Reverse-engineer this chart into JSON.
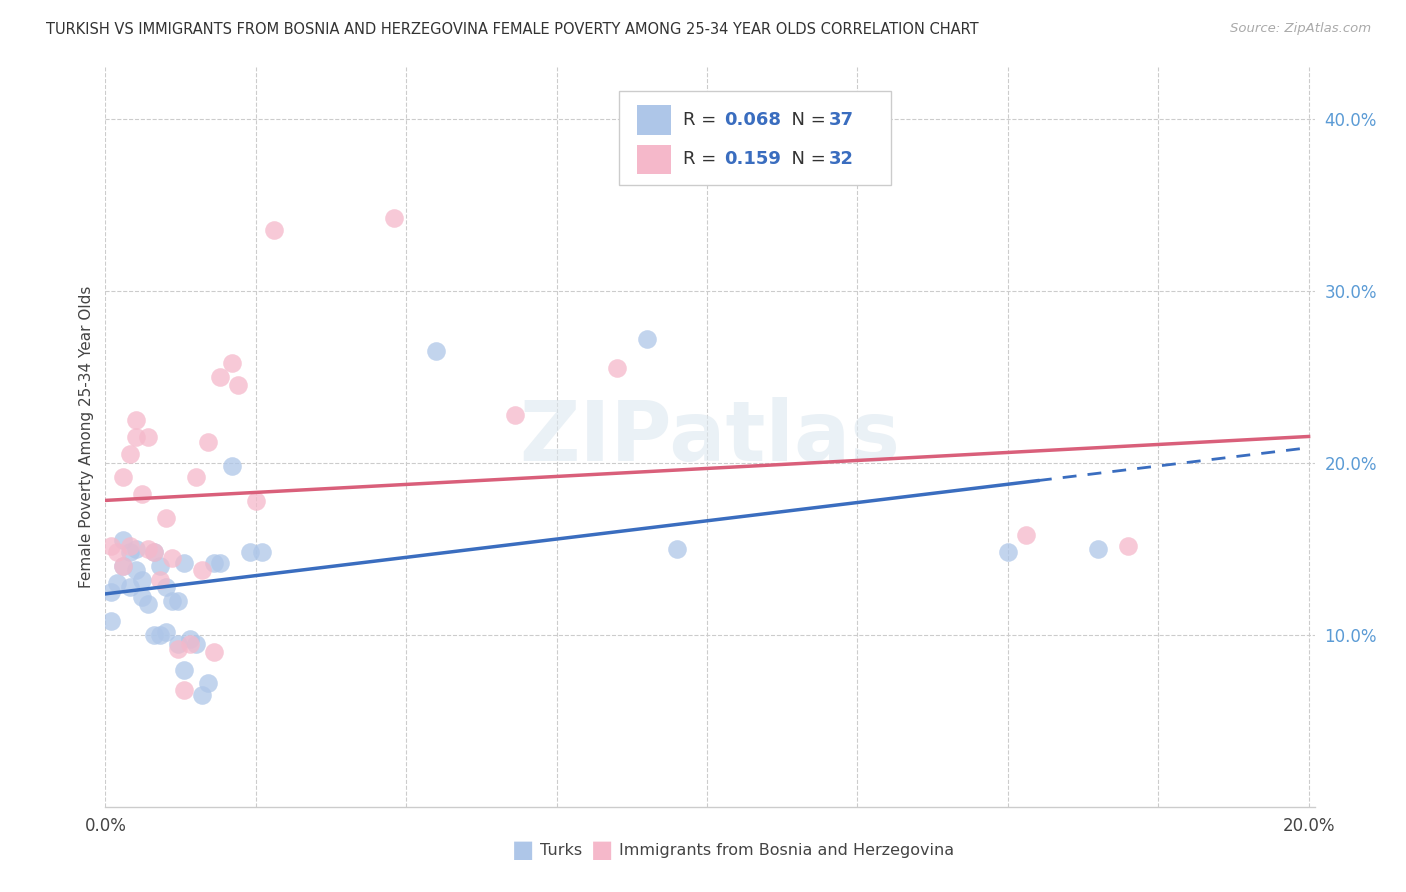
{
  "title": "TURKISH VS IMMIGRANTS FROM BOSNIA AND HERZEGOVINA FEMALE POVERTY AMONG 25-34 YEAR OLDS CORRELATION CHART",
  "source": "Source: ZipAtlas.com",
  "ylabel": "Female Poverty Among 25-34 Year Olds",
  "xlim": [
    0.0,
    0.201
  ],
  "ylim": [
    0.0,
    0.43
  ],
  "xtick_positions": [
    0.0,
    0.025,
    0.05,
    0.075,
    0.1,
    0.125,
    0.15,
    0.175,
    0.2
  ],
  "xtick_labels": [
    "0.0%",
    "",
    "",
    "",
    "",
    "",
    "",
    "",
    "20.0%"
  ],
  "ytick_positions": [
    0.1,
    0.2,
    0.3,
    0.4
  ],
  "ytick_labels": [
    "10.0%",
    "20.0%",
    "30.0%",
    "40.0%"
  ],
  "turks_R": "0.068",
  "turks_N": "37",
  "bosnia_R": "0.159",
  "bosnia_N": "32",
  "turks_color": "#aec6e8",
  "bosnia_color": "#f5b8ca",
  "turks_line_color": "#3a6dbf",
  "bosnia_line_color": "#d95f7a",
  "grid_color": "#cccccc",
  "watermark": "ZIPatlas",
  "turks_x": [
    0.001,
    0.001,
    0.002,
    0.003,
    0.003,
    0.004,
    0.004,
    0.005,
    0.005,
    0.006,
    0.006,
    0.007,
    0.008,
    0.008,
    0.009,
    0.009,
    0.01,
    0.01,
    0.011,
    0.012,
    0.012,
    0.013,
    0.013,
    0.014,
    0.015,
    0.016,
    0.017,
    0.018,
    0.019,
    0.021,
    0.024,
    0.026,
    0.055,
    0.09,
    0.095,
    0.15,
    0.165
  ],
  "turks_y": [
    0.125,
    0.108,
    0.13,
    0.14,
    0.155,
    0.128,
    0.148,
    0.138,
    0.15,
    0.122,
    0.132,
    0.118,
    0.1,
    0.148,
    0.14,
    0.1,
    0.128,
    0.102,
    0.12,
    0.12,
    0.095,
    0.08,
    0.142,
    0.098,
    0.095,
    0.065,
    0.072,
    0.142,
    0.142,
    0.198,
    0.148,
    0.148,
    0.265,
    0.272,
    0.15,
    0.148,
    0.15
  ],
  "bosnia_x": [
    0.001,
    0.002,
    0.003,
    0.003,
    0.004,
    0.004,
    0.005,
    0.005,
    0.006,
    0.007,
    0.007,
    0.008,
    0.009,
    0.01,
    0.011,
    0.012,
    0.013,
    0.014,
    0.015,
    0.016,
    0.017,
    0.018,
    0.019,
    0.021,
    0.022,
    0.025,
    0.028,
    0.048,
    0.068,
    0.085,
    0.153,
    0.17
  ],
  "bosnia_y": [
    0.152,
    0.148,
    0.14,
    0.192,
    0.152,
    0.205,
    0.215,
    0.225,
    0.182,
    0.215,
    0.15,
    0.148,
    0.132,
    0.168,
    0.145,
    0.092,
    0.068,
    0.095,
    0.192,
    0.138,
    0.212,
    0.09,
    0.25,
    0.258,
    0.245,
    0.178,
    0.335,
    0.342,
    0.228,
    0.255,
    0.158,
    0.152
  ]
}
